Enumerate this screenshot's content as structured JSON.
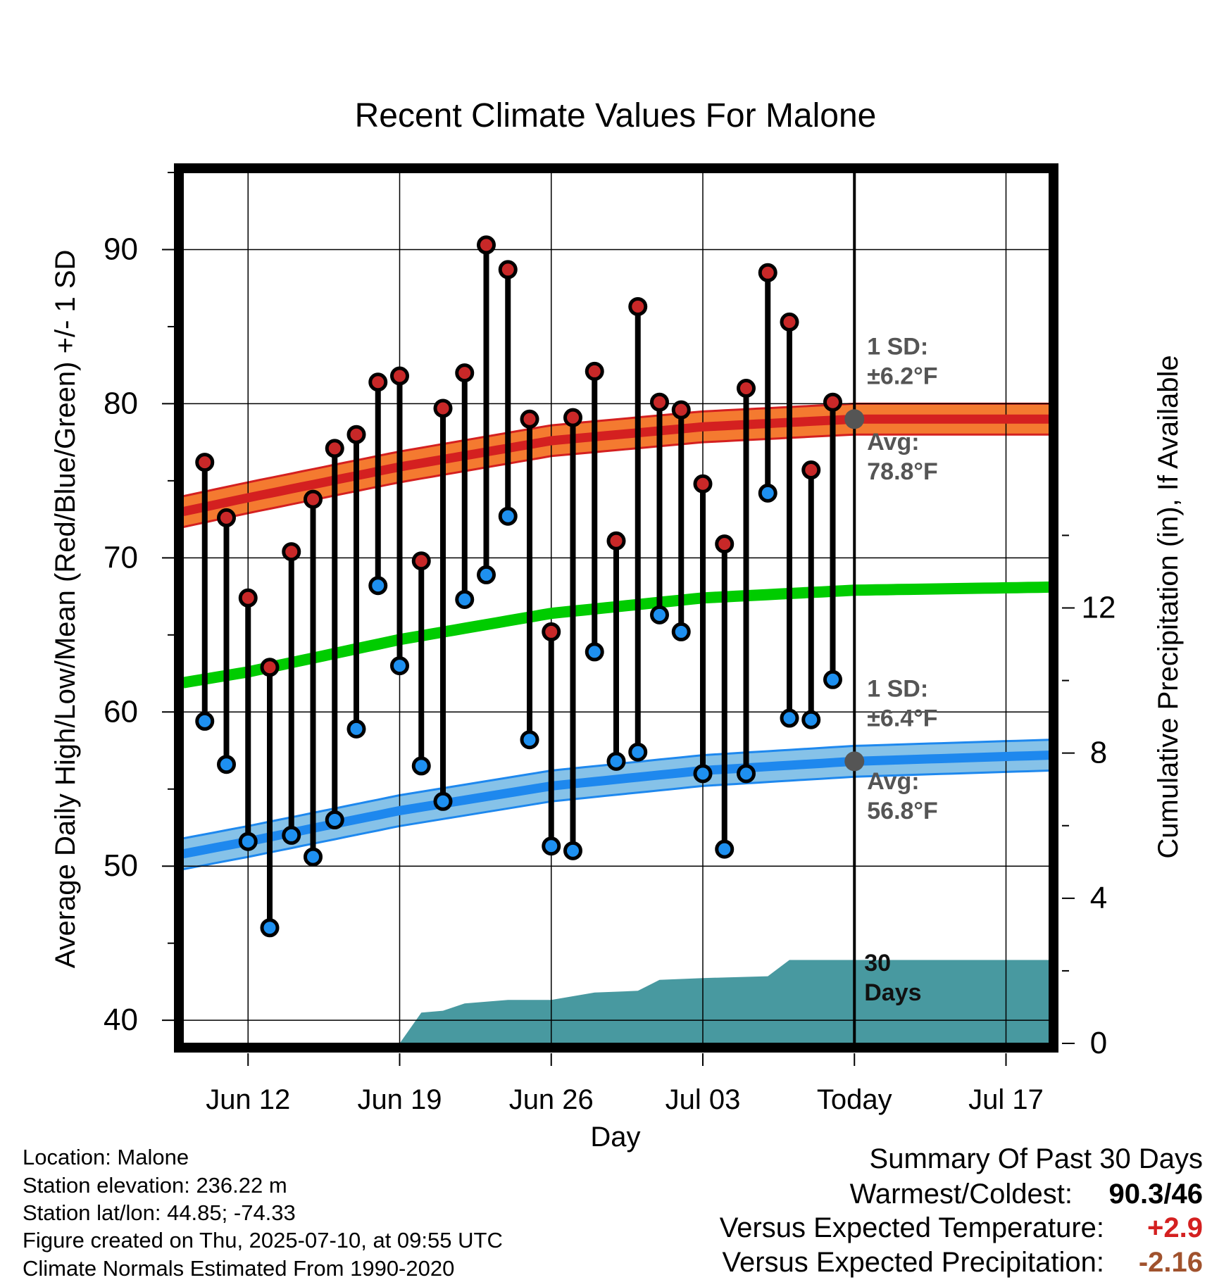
{
  "chart_data": {
    "type": "line",
    "title": "Recent Climate Values For Malone",
    "xlabel": "Day",
    "ylabel": "Average Daily High/Low/Mean (Red/Blue/Green) +/- 1 SD",
    "y2label": "Cumulative Precipitation (in), If Available",
    "xlim": [
      "Jun 09",
      "Jul 19"
    ],
    "ylim": [
      38.5,
      95
    ],
    "y2lim": [
      0,
      24
    ],
    "grid": true,
    "x_ticks": [
      "Jun 12",
      "Jun 19",
      "Jun 26",
      "Jul 03",
      "Today",
      "Jul 17"
    ],
    "y_ticks": [
      40,
      50,
      60,
      70,
      80,
      90
    ],
    "y2_ticks": [
      0,
      4,
      8,
      12
    ],
    "dates": [
      "Jun 10",
      "Jun 11",
      "Jun 12",
      "Jun 13",
      "Jun 14",
      "Jun 15",
      "Jun 16",
      "Jun 17",
      "Jun 18",
      "Jun 19",
      "Jun 20",
      "Jun 21",
      "Jun 22",
      "Jun 23",
      "Jun 24",
      "Jun 25",
      "Jun 26",
      "Jun 27",
      "Jun 28",
      "Jun 29",
      "Jun 30",
      "Jul 01",
      "Jul 02",
      "Jul 03",
      "Jul 04",
      "Jul 05",
      "Jul 06",
      "Jul 07",
      "Jul 08",
      "Jul 09"
    ],
    "daily_high": [
      76.2,
      72.6,
      67.4,
      62.9,
      70.4,
      73.8,
      77.1,
      78.0,
      81.4,
      81.8,
      69.8,
      79.7,
      82.0,
      90.3,
      88.7,
      79.0,
      65.2,
      79.1,
      82.1,
      71.1,
      86.3,
      80.1,
      79.6,
      74.8,
      70.9,
      81.0,
      88.5,
      85.3,
      75.7,
      80.1
    ],
    "daily_low": [
      59.4,
      56.6,
      51.6,
      46.0,
      52.0,
      50.6,
      53.0,
      58.9,
      68.2,
      63.0,
      56.5,
      54.2,
      67.3,
      68.9,
      72.7,
      58.2,
      51.3,
      51.0,
      63.9,
      56.8,
      57.4,
      66.3,
      65.2,
      56.0,
      51.1,
      56.0,
      74.2,
      59.6,
      59.5,
      62.1
    ],
    "normal_high": {
      "dates": [
        "Jun 09",
        "Jun 12",
        "Jun 19",
        "Jun 26",
        "Jul 03",
        "Jul 10",
        "Jul 19"
      ],
      "mean": [
        73.0,
        73.9,
        75.9,
        77.6,
        78.5,
        79.0,
        79.0
      ],
      "sd_label": "1 SD:\n±6.2°F",
      "avg_label": "Avg:\n78.8°F",
      "color": "#d42020",
      "band_color": "#f47a30"
    },
    "normal_low": {
      "dates": [
        "Jun 09",
        "Jun 12",
        "Jun 19",
        "Jun 26",
        "Jul 03",
        "Jul 10",
        "Jul 19"
      ],
      "mean": [
        50.8,
        51.6,
        53.6,
        55.2,
        56.2,
        56.8,
        57.2
      ],
      "sd_label": "1 SD:\n±6.4°F",
      "avg_label": "Avg:\n56.8°F",
      "color": "#1e88ee",
      "band_color": "#86c2e8"
    },
    "normal_mean": {
      "dates": [
        "Jun 09",
        "Jun 12",
        "Jun 19",
        "Jun 26",
        "Jul 03",
        "Jul 10",
        "Jul 19"
      ],
      "values": [
        61.9,
        62.6,
        64.7,
        66.4,
        67.4,
        67.9,
        68.1
      ],
      "color": "#00cc00"
    },
    "precip_cumulative": {
      "dates": [
        "Jun 19",
        "Jun 20",
        "Jun 21",
        "Jun 22",
        "Jun 23",
        "Jun 24",
        "Jun 26",
        "Jun 27",
        "Jun 28",
        "Jun 30",
        "Jul 01",
        "Jul 03",
        "Jul 06",
        "Jul 07",
        "Jul 10",
        "Jul 19"
      ],
      "values": [
        0.0,
        0.85,
        0.9,
        1.1,
        1.15,
        1.2,
        1.2,
        1.3,
        1.4,
        1.45,
        1.75,
        1.8,
        1.85,
        2.3,
        2.3,
        2.3
      ],
      "label": "30\nDays",
      "color": "#4899a0"
    }
  },
  "info": {
    "location": "Location: Malone",
    "elevation": "Station elevation: 236.22 m",
    "latlon": "Station lat/lon: 44.85; -74.33",
    "created": "Figure created on Thu, 2025-07-10, at 09:55 UTC",
    "normals": "Climate Normals Estimated From 1990-2020"
  },
  "summary": {
    "title": "Summary Of Past 30 Days",
    "warmest_coldest_label": "Warmest/Coldest:",
    "warmest_coldest_value": "90.3/46",
    "temp_label": "Versus Expected Temperature:",
    "temp_value": "+2.9",
    "temp_color": "#d42020",
    "precip_label": "Versus Expected Precipitation:",
    "precip_value": "-2.16",
    "precip_color": "#a0522d"
  }
}
